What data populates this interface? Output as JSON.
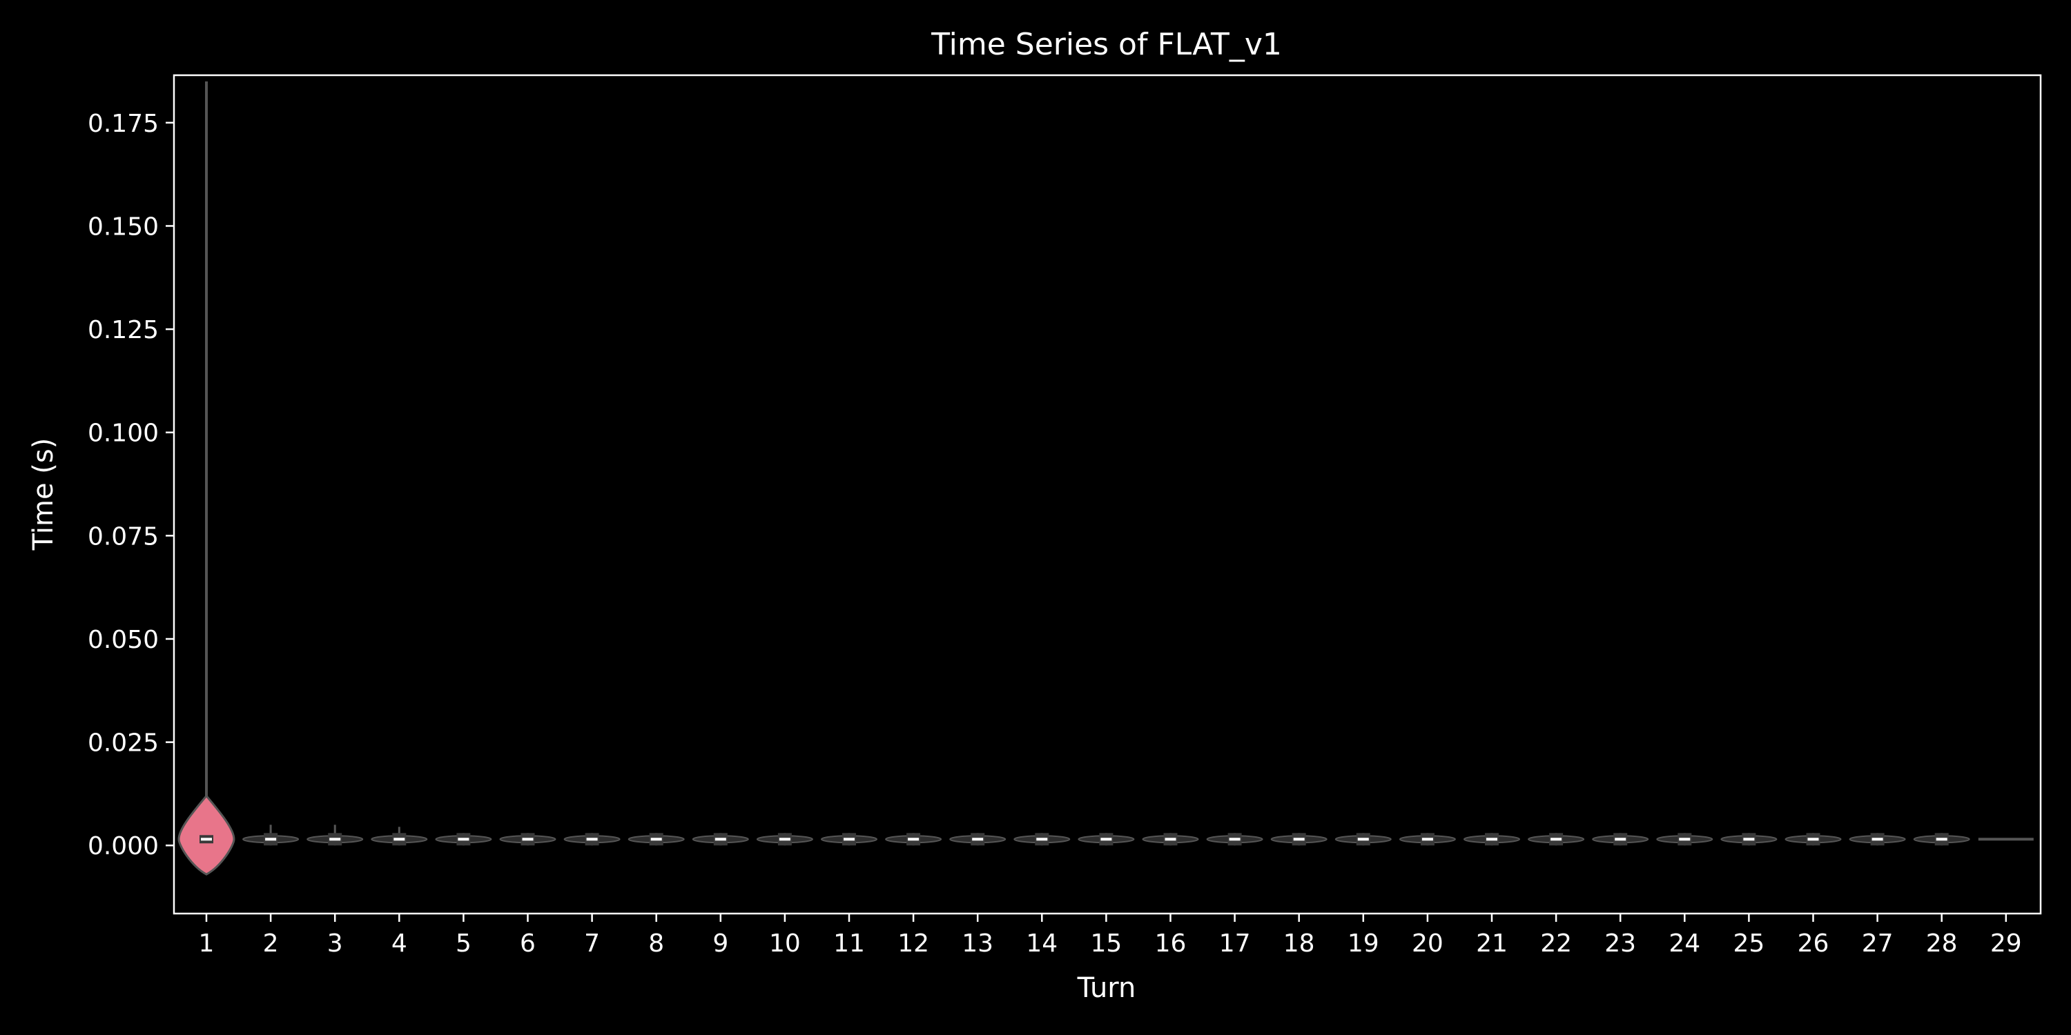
{
  "chart_data": {
    "type": "violin",
    "title": "Time Series of FLAT_v1",
    "xlabel": "Turn",
    "ylabel": "Time (s)",
    "ylim": [
      -0.0165,
      0.1865
    ],
    "yticks": [
      "0.000",
      "0.025",
      "0.050",
      "0.075",
      "0.100",
      "0.125",
      "0.150",
      "0.175"
    ],
    "ytick_values": [
      0,
      0.025,
      0.05,
      0.075,
      0.1,
      0.125,
      0.15,
      0.175
    ],
    "categories": [
      "1",
      "2",
      "3",
      "4",
      "5",
      "6",
      "7",
      "8",
      "9",
      "10",
      "11",
      "12",
      "13",
      "14",
      "15",
      "16",
      "17",
      "18",
      "19",
      "20",
      "21",
      "22",
      "23",
      "24",
      "25",
      "26",
      "27",
      "28",
      "29"
    ],
    "grid": false,
    "colors": {
      "background": "#000000",
      "axes": "#ffffff",
      "text": "#ffffff",
      "violin_first": "#e8758a",
      "violin_body": "#2c2c2c",
      "violin_edge": "#555555",
      "box": "#3a3a3a",
      "median": "#ffffff"
    },
    "series": [
      {
        "min": [
          -0.007,
          0.0,
          0.0,
          0.0,
          0.0,
          0.0,
          0.0,
          0.0,
          0.0,
          0.0,
          0.0,
          0.0,
          0.0,
          0.0,
          0.0,
          0.0,
          0.0,
          0.0,
          0.0,
          0.0,
          0.0,
          0.0,
          0.0,
          0.0,
          0.0,
          0.0,
          0.0,
          0.0,
          0.0015
        ],
        "q1": [
          0.0005,
          0.0007,
          0.0007,
          0.0007,
          0.0007,
          0.0008,
          0.0008,
          0.0008,
          0.0008,
          0.0008,
          0.0008,
          0.0008,
          0.0008,
          0.0008,
          0.0008,
          0.0008,
          0.0008,
          0.0008,
          0.0008,
          0.0008,
          0.0008,
          0.0008,
          0.0008,
          0.0008,
          0.0008,
          0.0008,
          0.0008,
          0.0008,
          0.0015
        ],
        "median": [
          0.0015,
          0.0015,
          0.0015,
          0.0015,
          0.0015,
          0.0015,
          0.0015,
          0.0015,
          0.0015,
          0.0015,
          0.0015,
          0.0015,
          0.0015,
          0.0015,
          0.0015,
          0.0015,
          0.0015,
          0.0015,
          0.0015,
          0.0015,
          0.0015,
          0.0015,
          0.0015,
          0.0015,
          0.0015,
          0.0015,
          0.0015,
          0.0015,
          0.0015
        ],
        "q3": [
          0.0025,
          0.002,
          0.002,
          0.002,
          0.002,
          0.002,
          0.002,
          0.002,
          0.002,
          0.002,
          0.002,
          0.002,
          0.002,
          0.002,
          0.002,
          0.002,
          0.002,
          0.002,
          0.002,
          0.002,
          0.002,
          0.002,
          0.002,
          0.002,
          0.002,
          0.002,
          0.002,
          0.002,
          0.0015
        ],
        "max": [
          0.185,
          0.005,
          0.005,
          0.0045,
          0.003,
          0.003,
          0.003,
          0.003,
          0.003,
          0.003,
          0.003,
          0.003,
          0.003,
          0.003,
          0.003,
          0.003,
          0.003,
          0.003,
          0.003,
          0.003,
          0.003,
          0.003,
          0.003,
          0.003,
          0.003,
          0.003,
          0.003,
          0.003,
          0.0015
        ]
      }
    ]
  }
}
